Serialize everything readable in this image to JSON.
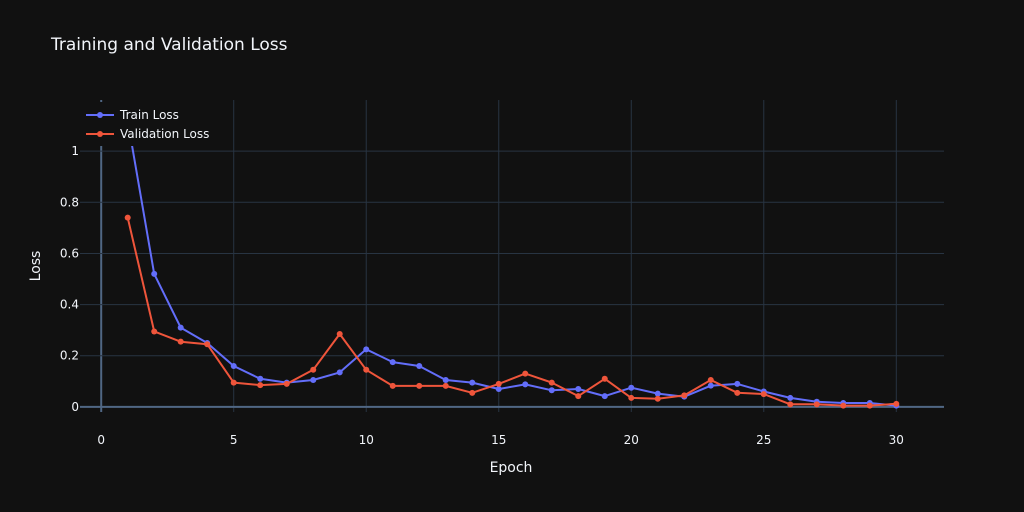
{
  "colors": {
    "background": "#111111",
    "grid": "#283442",
    "text": "#f2f5fa",
    "train": "#636efa",
    "validation": "#ef553b"
  },
  "chart_data": {
    "type": "line",
    "title": "Training and Validation Loss",
    "xlabel": "Epoch",
    "ylabel": "Loss",
    "xlim": [
      -0.8,
      31.8
    ],
    "ylim": [
      -0.02,
      1.2
    ],
    "xticks": [
      0,
      5,
      10,
      15,
      20,
      25,
      30
    ],
    "yticks": [
      0,
      0.2,
      0.4,
      0.6,
      0.8,
      1
    ],
    "ytick_labels": [
      "0",
      "0.2",
      "0.4",
      "0.6",
      "0.8",
      "1"
    ],
    "grid": true,
    "legend_position": "top-left",
    "x": [
      1,
      2,
      3,
      4,
      5,
      6,
      7,
      8,
      9,
      10,
      11,
      12,
      13,
      14,
      15,
      16,
      17,
      18,
      19,
      20,
      21,
      22,
      23,
      24,
      25,
      26,
      27,
      28,
      29,
      30
    ],
    "series": [
      {
        "name": "Train Loss",
        "color": "#636efa",
        "values": [
          1.12,
          0.52,
          0.31,
          0.25,
          0.16,
          0.11,
          0.095,
          0.105,
          0.135,
          0.225,
          0.175,
          0.16,
          0.105,
          0.095,
          0.07,
          0.088,
          0.065,
          0.07,
          0.042,
          0.075,
          0.052,
          0.04,
          0.083,
          0.09,
          0.06,
          0.035,
          0.02,
          0.015,
          0.015,
          0.005
        ]
      },
      {
        "name": "Validation Loss",
        "color": "#ef553b",
        "values": [
          0.74,
          0.295,
          0.255,
          0.245,
          0.095,
          0.085,
          0.09,
          0.145,
          0.285,
          0.145,
          0.082,
          0.082,
          0.082,
          0.055,
          0.09,
          0.13,
          0.095,
          0.042,
          0.11,
          0.035,
          0.032,
          0.045,
          0.105,
          0.055,
          0.05,
          0.01,
          0.01,
          0.005,
          0.005,
          0.012
        ]
      }
    ]
  }
}
